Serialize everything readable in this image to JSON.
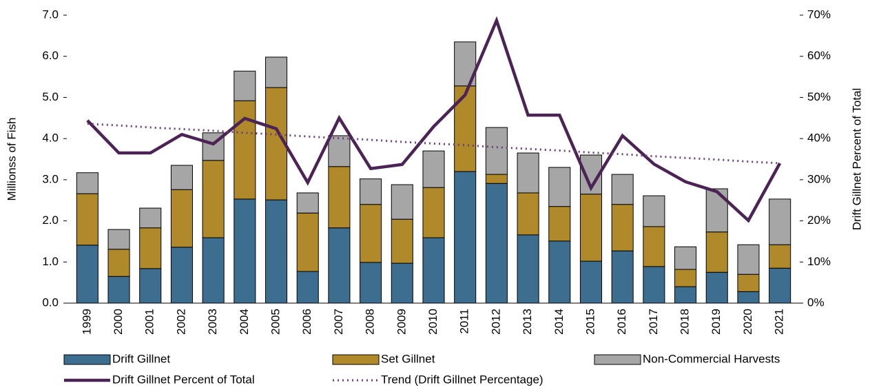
{
  "chart_data": {
    "type": "bar",
    "stacked": true,
    "ylabel": "Millionss of Fish",
    "y2label": "Drift Gillnet Percent of Total",
    "categories": [
      "1999",
      "2000",
      "2001",
      "2002",
      "2003",
      "2004",
      "2005",
      "2006",
      "2007",
      "2008",
      "2009",
      "2010",
      "2011",
      "2012",
      "2013",
      "2014",
      "2015",
      "2016",
      "2017",
      "2018",
      "2019",
      "2020",
      "2021"
    ],
    "series": [
      {
        "name": "Drift Gillnet",
        "type": "bar",
        "color": "#3d6d8f",
        "values": [
          1.41,
          0.65,
          0.84,
          1.36,
          1.59,
          2.53,
          2.51,
          0.77,
          1.83,
          0.99,
          0.97,
          1.59,
          3.2,
          2.91,
          1.66,
          1.51,
          1.02,
          1.27,
          0.89,
          0.4,
          0.75,
          0.28,
          0.85
        ]
      },
      {
        "name": "Set Gillnet",
        "type": "bar",
        "color": "#b08a2a",
        "values": [
          1.25,
          0.66,
          0.99,
          1.4,
          1.88,
          2.39,
          2.73,
          1.42,
          1.49,
          1.41,
          1.07,
          1.22,
          2.08,
          0.22,
          1.02,
          0.84,
          1.63,
          1.13,
          0.97,
          0.42,
          0.98,
          0.42,
          0.57
        ]
      },
      {
        "name": "Non-Commercial Harvests",
        "type": "bar",
        "color": "#a6a6a6",
        "values": [
          0.51,
          0.48,
          0.48,
          0.59,
          0.67,
          0.72,
          0.74,
          0.49,
          0.75,
          0.62,
          0.84,
          0.89,
          1.07,
          1.14,
          0.97,
          0.95,
          0.95,
          0.73,
          0.75,
          0.55,
          1.05,
          0.72,
          1.11
        ]
      },
      {
        "name": "Drift Gillnet Percent of Total",
        "type": "line",
        "axis": "y2",
        "color": "#4b2455",
        "style": "solid",
        "values": [
          44.4,
          36.5,
          36.5,
          41.0,
          38.7,
          44.9,
          42.4,
          29.3,
          45.0,
          32.7,
          33.7,
          42.9,
          50.6,
          68.7,
          45.7,
          45.7,
          28.0,
          40.7,
          33.8,
          29.5,
          27.1,
          20.1,
          34.0
        ]
      },
      {
        "name": "Trend (Drift Gillnet Percentage)",
        "type": "line",
        "axis": "y2",
        "color": "#6b3f7a",
        "style": "dotted",
        "values": [
          43.6,
          43.2,
          42.7,
          42.3,
          41.9,
          41.4,
          41.0,
          40.5,
          40.1,
          39.7,
          39.2,
          38.8,
          38.4,
          37.9,
          37.5,
          37.1,
          36.6,
          36.2,
          35.7,
          35.3,
          34.9,
          34.4,
          34.0
        ]
      }
    ],
    "ylim": [
      0,
      7
    ],
    "yticks": [
      {
        "value": 0,
        "label": "0.0"
      },
      {
        "value": 1,
        "label": "1.0"
      },
      {
        "value": 2,
        "label": "2.0"
      },
      {
        "value": 3,
        "label": "3.0"
      },
      {
        "value": 4,
        "label": "4.0"
      },
      {
        "value": 5,
        "label": "5.0"
      },
      {
        "value": 6,
        "label": "6.0"
      },
      {
        "value": 7,
        "label": "7.0"
      }
    ],
    "y2lim": [
      0,
      70
    ],
    "y2ticks": [
      {
        "value": 0,
        "label": "0%"
      },
      {
        "value": 10,
        "label": "10%"
      },
      {
        "value": 20,
        "label": "20%"
      },
      {
        "value": 30,
        "label": "30%"
      },
      {
        "value": 40,
        "label": "40%"
      },
      {
        "value": 50,
        "label": "50%"
      },
      {
        "value": 60,
        "label": "60%"
      },
      {
        "value": 70,
        "label": "70%"
      }
    ],
    "grid": false,
    "legend": "bottom"
  }
}
